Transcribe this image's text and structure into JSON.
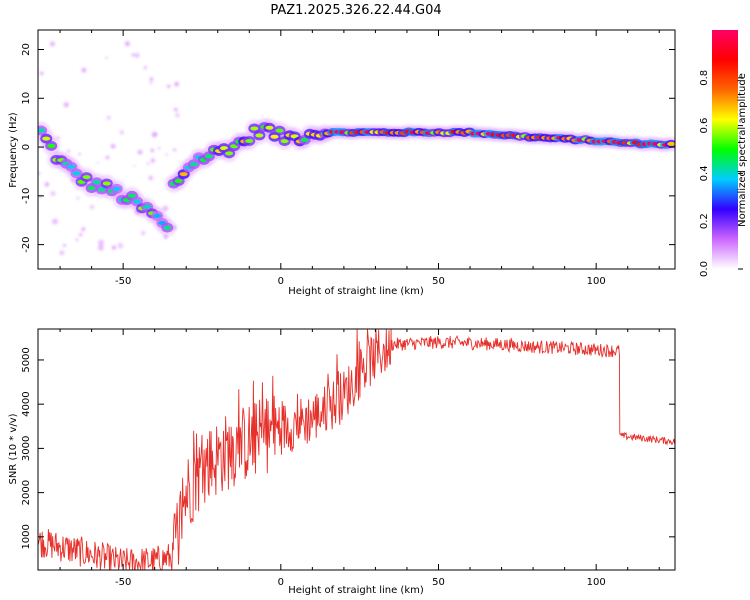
{
  "colors": {
    "background": "#ffffff",
    "axis": "#000000",
    "snr_line": "#e8302b"
  },
  "chart_data": [
    {
      "type": "heatmap",
      "title": "PAZ1.2025.326.22.44.G04",
      "xlabel": "Height of straight line (km)",
      "ylabel": "Frequency (Hz)",
      "xlim": [
        -77,
        125
      ],
      "ylim": [
        -25,
        24
      ],
      "xticks": [
        -50,
        0,
        50,
        100
      ],
      "yticks": [
        -20,
        -10,
        0,
        10,
        20
      ],
      "colorbar": {
        "label": "Normalized spectral amplitude",
        "range": [
          0,
          1
        ],
        "ticks": [
          "0.0",
          "0.2",
          "0.4",
          "0.6",
          "0.8"
        ],
        "colormap": [
          "#ffffff",
          "#cc66ff",
          "#3300ff",
          "#00ccff",
          "#00ff00",
          "#ffff00",
          "#ff6600",
          "#ff0000",
          "#ff0066"
        ]
      },
      "tracks": [
        {
          "name": "descending-branch",
          "points": [
            [
              -76,
              3
            ],
            [
              -70,
              -3
            ],
            [
              -62,
              -7
            ],
            [
              -53,
              -9
            ],
            [
              -45,
              -12
            ],
            [
              -40,
              -14
            ],
            [
              -36,
              -17
            ]
          ],
          "peak": 0.6
        },
        {
          "name": "rising-branch",
          "points": [
            [
              -34,
              -8
            ],
            [
              -28,
              -3
            ],
            [
              -20,
              -1
            ],
            [
              -12,
              1
            ],
            [
              -6,
              4
            ],
            [
              0,
              2
            ],
            [
              5,
              2
            ],
            [
              10,
              3
            ],
            [
              15,
              3
            ]
          ],
          "peak": 0.7
        },
        {
          "name": "main-line",
          "points": [
            [
              15,
              3
            ],
            [
              40,
              3
            ],
            [
              60,
              3
            ],
            [
              80,
              2
            ],
            [
              95,
              1.5
            ],
            [
              110,
              0.8
            ],
            [
              125,
              0.5
            ]
          ],
          "peak": 1.0
        }
      ]
    },
    {
      "type": "line",
      "xlabel": "Height of straight line (km)",
      "ylabel": "SNR (10 * v/v)",
      "xlim": [
        -77,
        125
      ],
      "ylim": [
        250,
        5700
      ],
      "xticks": [
        -50,
        0,
        50,
        100
      ],
      "yticks": [
        1000,
        2000,
        3000,
        4000,
        5000
      ],
      "series": [
        {
          "name": "SNR",
          "segments": [
            {
              "x": [
                -77,
                -60,
                -50,
                -40,
                -34
              ],
              "base": [
                900,
                600,
                400,
                450,
                550
              ],
              "noise": 350
            },
            {
              "x": [
                -34,
                -30,
                -25,
                -20,
                -15,
                -10,
                -5,
                0
              ],
              "base": [
                700,
                2000,
                2500,
                2800,
                3000,
                3150,
                3300,
                3450
              ],
              "noise": 900
            },
            {
              "x": [
                0,
                5,
                10,
                15,
                20,
                25,
                30,
                35
              ],
              "base": [
                3450,
                3550,
                3700,
                3900,
                4200,
                4700,
                5100,
                5300
              ],
              "noise": 600
            },
            {
              "x": [
                35,
                50,
                60,
                70,
                80,
                90,
                100,
                107.5
              ],
              "base": [
                5350,
                5400,
                5380,
                5350,
                5300,
                5270,
                5230,
                5200
              ],
              "noise": 150
            },
            {
              "x": [
                107.5,
                108,
                115,
                125
              ],
              "base": [
                3300,
                3280,
                3230,
                3150
              ],
              "noise": 80
            }
          ]
        }
      ]
    }
  ]
}
